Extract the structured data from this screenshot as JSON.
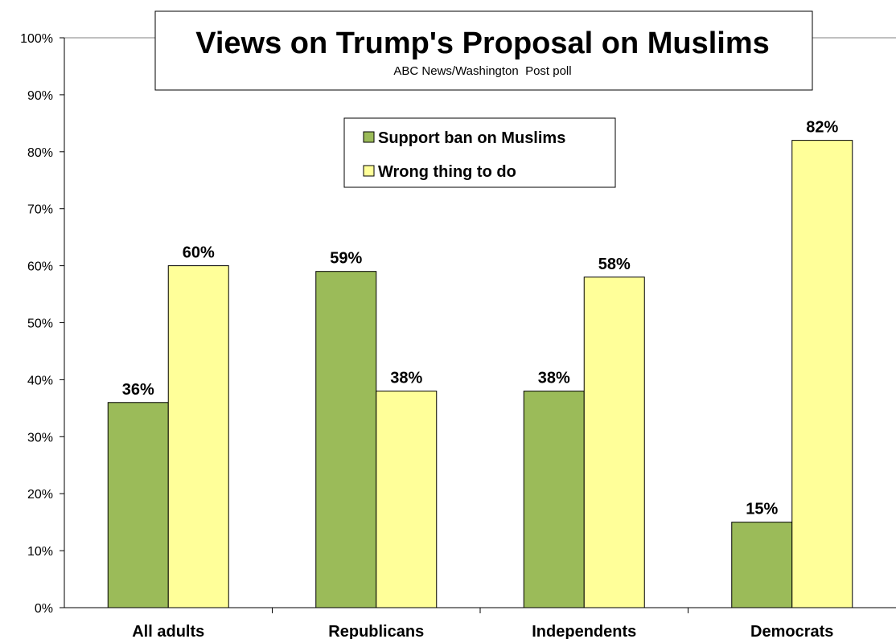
{
  "chart_data": {
    "type": "bar",
    "title": "Views on Trump's Proposal on Muslims",
    "subtitle": "ABC News/Washington  Post poll",
    "categories": [
      "All adults",
      "Republicans",
      "Independents",
      "Democrats"
    ],
    "series": [
      {
        "name": "Support ban on Muslims",
        "values": [
          36,
          59,
          38,
          15
        ],
        "color": "#9bbb59"
      },
      {
        "name": "Wrong thing to do",
        "values": [
          60,
          38,
          58,
          82
        ],
        "color": "#ffff99"
      }
    ],
    "data_labels": [
      [
        "36%",
        "59%",
        "38%",
        "15%"
      ],
      [
        "60%",
        "38%",
        "58%",
        "82%"
      ]
    ],
    "ylim": [
      0,
      100
    ],
    "yticks": [
      0,
      10,
      20,
      30,
      40,
      50,
      60,
      70,
      80,
      90,
      100
    ],
    "ytick_labels": [
      "0%",
      "10%",
      "20%",
      "30%",
      "40%",
      "50%",
      "60%",
      "70%",
      "80%",
      "90%",
      "100%"
    ],
    "xlabel": "",
    "ylabel": "",
    "grid": false,
    "legend_position": "top-center"
  }
}
